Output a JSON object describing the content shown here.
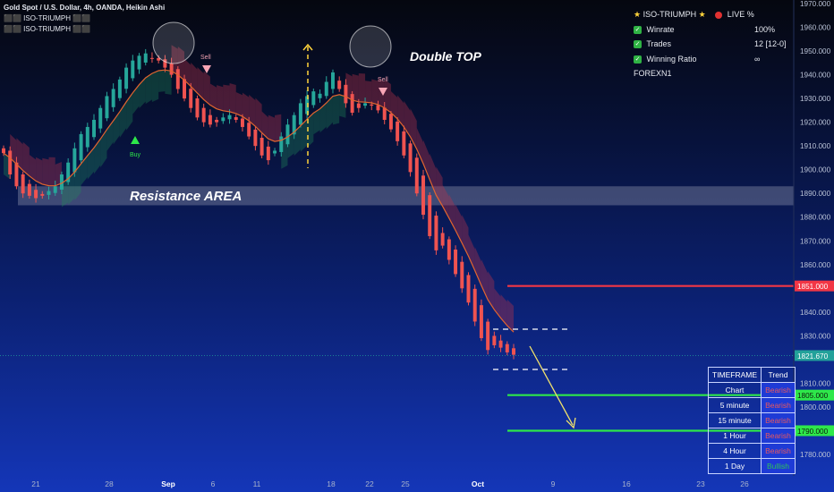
{
  "header": {
    "symbol_line": "Gold Spot / U.S. Dollar, 4h, OANDA, Heikin Ashi",
    "indicator_1": "⬛⬛ ISO-TRIUMPH ⬛⬛",
    "indicator_2": "⬛⬛ ISO-TRIUMPH ⬛⬛"
  },
  "stats_panel": {
    "title": "ISO-TRIUMPH",
    "live_label": "LIVE %",
    "rows": [
      {
        "label": "Winrate",
        "value": "100%"
      },
      {
        "label": "Trades",
        "value": "12 [12-0]"
      },
      {
        "label": "Winning Ratio",
        "value": "∞"
      }
    ],
    "footer": "FOREXN1"
  },
  "trend_table": {
    "headers": [
      "TIMEFRAME",
      "Trend"
    ],
    "rows": [
      {
        "timeframe": "Chart",
        "trend": "Bearish"
      },
      {
        "timeframe": "5 minute",
        "trend": "Bearish"
      },
      {
        "timeframe": "15 minute",
        "trend": "Bearish"
      },
      {
        "timeframe": "1 Hour",
        "trend": "Bearish"
      },
      {
        "timeframe": "4 Hour",
        "trend": "Bearish"
      },
      {
        "timeframe": "1 Day",
        "trend": "Bullish"
      }
    ]
  },
  "chart_data": {
    "type": "candlestick",
    "ylim": [
      1772,
      1972
    ],
    "y_ticks": [
      1780,
      1790,
      1800,
      1810,
      1820,
      1830,
      1840,
      1850,
      1860,
      1870,
      1880,
      1890,
      1900,
      1910,
      1920,
      1930,
      1940,
      1950,
      1960,
      1970
    ],
    "y_tick_labels": [
      "1780.000",
      "1790.000",
      "1800.000",
      "1810.000",
      "1820.000",
      "1830.000",
      "1840.000",
      "1850.000",
      "1860.000",
      "1870.000",
      "1880.000",
      "1890.000",
      "1900.000",
      "1910.000",
      "1920.000",
      "1930.000",
      "1940.000",
      "1950.000",
      "1960.000",
      "1970.000"
    ],
    "x_ticks": [
      "21",
      "28",
      "Sep",
      "6",
      "11",
      "18",
      "22",
      "25",
      "Oct",
      "9",
      "16",
      "23",
      "26"
    ],
    "x_tick_positions": [
      40,
      122,
      188,
      238,
      287,
      370,
      413,
      453,
      534,
      618,
      700,
      783,
      832
    ],
    "bold_x_ticks": [
      "Sep",
      "Oct"
    ],
    "closes": [
      1907,
      1898,
      1893,
      1890,
      1889,
      1888,
      1889,
      1891,
      1893,
      1898,
      1903,
      1909,
      1915,
      1918,
      1921,
      1926,
      1931,
      1934,
      1938,
      1943,
      1946,
      1948,
      1949,
      1947,
      1946,
      1943,
      1940,
      1934,
      1930,
      1926,
      1922,
      1920,
      1919,
      1920,
      1922,
      1923,
      1921,
      1918,
      1914,
      1910,
      1906,
      1904,
      1908,
      1914,
      1919,
      1923,
      1928,
      1931,
      1933,
      1932,
      1937,
      1941,
      1934,
      1928,
      1924,
      1926,
      1928,
      1927,
      1925,
      1921,
      1917,
      1912,
      1906,
      1899,
      1890,
      1881,
      1872,
      1866,
      1868,
      1862,
      1856,
      1850,
      1844,
      1836,
      1829,
      1824,
      1826,
      1825,
      1823,
      1822
    ],
    "price_lines": [
      {
        "value": 1851.0,
        "label": "1851.000",
        "color": "#f23645"
      },
      {
        "value": 1805.0,
        "label": "1805.000",
        "color": "#2ee84a"
      },
      {
        "value": 1790.0,
        "label": "1790.000",
        "color": "#2ee84a"
      }
    ],
    "current_price": {
      "value": 1821.67,
      "label": "1821.670",
      "color": "#22a19a"
    },
    "zone": {
      "label": "Resistance AREA",
      "from": 1885,
      "to": 1893
    },
    "annotations": [
      {
        "text": "Double TOP"
      },
      {
        "text": "Buy"
      },
      {
        "text": "Sell"
      },
      {
        "text": "Sell"
      }
    ],
    "colors": {
      "up": "#26a69a",
      "down": "#ef5350",
      "ma": "#e2652f"
    }
  }
}
